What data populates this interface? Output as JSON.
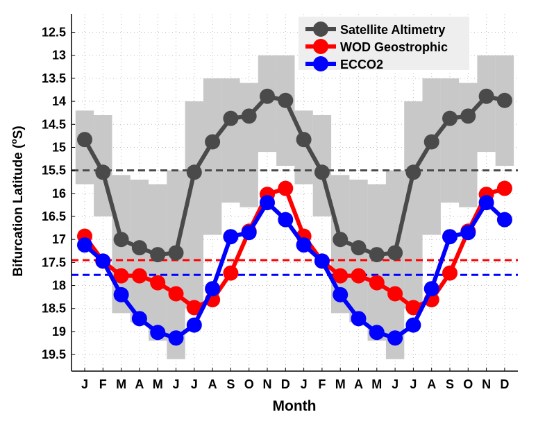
{
  "chart_data": {
    "type": "line",
    "title": "",
    "xlabel": "Month",
    "ylabel": "Bifurcation Latitude (°S)",
    "ylabel_parts": {
      "prefix": "Bifurcation Latitude (",
      "sup": "o",
      "suffix": "S)"
    },
    "categories": [
      "J",
      "F",
      "M",
      "A",
      "M",
      "J",
      "J",
      "A",
      "S",
      "O",
      "N",
      "D",
      "J",
      "F",
      "M",
      "A",
      "M",
      "J",
      "J",
      "A",
      "S",
      "O",
      "N",
      "D"
    ],
    "yticks": [
      "12.5",
      "13",
      "13.5",
      "14",
      "14.5",
      "15",
      "15.5",
      "16",
      "16.5",
      "17",
      "17.5",
      "18",
      "18.5",
      "19",
      "19.5"
    ],
    "ylim": [
      12.1,
      19.86
    ],
    "y_inverted": true,
    "grid": true,
    "legend_placement": "top-right",
    "series": [
      {
        "name": "Satellite Altimetry",
        "color": "#4a4a4a",
        "mean": 15.5,
        "values": [
          14.83,
          15.54,
          17.0,
          17.18,
          17.33,
          17.29,
          15.54,
          14.88,
          14.37,
          14.32,
          13.89,
          13.98,
          14.83,
          15.54,
          17.0,
          17.18,
          17.33,
          17.29,
          15.54,
          14.88,
          14.37,
          14.32,
          13.89,
          13.98
        ]
      },
      {
        "name": "WOD Geostrophic",
        "color": "#ff0000",
        "mean": 17.45,
        "values": [
          16.93,
          17.47,
          17.79,
          17.79,
          17.94,
          18.18,
          18.48,
          18.31,
          17.73,
          16.82,
          16.02,
          15.89,
          16.93,
          17.47,
          17.79,
          17.79,
          17.94,
          18.18,
          18.48,
          18.31,
          17.73,
          16.82,
          16.02,
          15.89
        ]
      },
      {
        "name": "ECCO2",
        "color": "#0000ff",
        "mean": 17.77,
        "values": [
          17.12,
          17.47,
          18.2,
          18.72,
          19.02,
          19.14,
          18.86,
          18.07,
          16.94,
          16.85,
          16.2,
          16.57,
          17.12,
          17.47,
          18.2,
          18.72,
          19.02,
          19.14,
          18.86,
          18.07,
          16.94,
          16.85,
          16.2,
          16.57
        ]
      }
    ],
    "satellite_spread": {
      "color": "#c8c8c8",
      "lower": [
        14.2,
        14.3,
        15.6,
        15.7,
        15.8,
        15.5,
        14.0,
        13.5,
        13.5,
        13.6,
        13.0,
        13.0,
        14.2,
        14.3,
        15.6,
        15.7,
        15.8,
        15.5,
        14.0,
        13.5,
        13.5,
        13.6,
        13.0,
        13.0
      ],
      "upper": [
        15.8,
        16.5,
        18.6,
        18.8,
        19.2,
        19.6,
        18.5,
        16.9,
        16.2,
        16.3,
        15.1,
        15.4,
        15.8,
        16.5,
        18.6,
        18.8,
        19.2,
        19.6,
        18.5,
        16.9,
        16.2,
        16.3,
        15.1,
        15.4
      ]
    }
  }
}
